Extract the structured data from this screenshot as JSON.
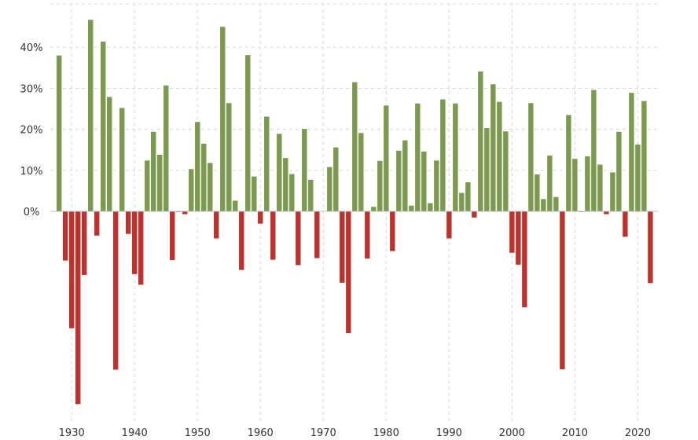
{
  "chart_data": {
    "type": "bar",
    "title": "",
    "xlabel": "",
    "ylabel": "",
    "y_unit": "%",
    "ylim": [
      -48,
      46
    ],
    "xlim": [
      1926.6,
      2023.2
    ],
    "grid": true,
    "colors": {
      "positive": "#7b9b4c",
      "negative": "#c0312b",
      "grid": "#d8d8d8",
      "text": "#333333"
    },
    "y_ticks": [
      {
        "value": 40,
        "label": "40%"
      },
      {
        "value": 30,
        "label": "30%"
      },
      {
        "value": 20,
        "label": "20%"
      },
      {
        "value": 10,
        "label": "10%"
      },
      {
        "value": 0,
        "label": "0%"
      }
    ],
    "x_ticks": [
      {
        "value": 1930,
        "label": "1930"
      },
      {
        "value": 1940,
        "label": "1940"
      },
      {
        "value": 1950,
        "label": "1950"
      },
      {
        "value": 1960,
        "label": "1960"
      },
      {
        "value": 1970,
        "label": "1970"
      },
      {
        "value": 1980,
        "label": "1980"
      },
      {
        "value": 1990,
        "label": "1990"
      },
      {
        "value": 2000,
        "label": "2000"
      },
      {
        "value": 2010,
        "label": "2010"
      },
      {
        "value": 2020,
        "label": "2020"
      }
    ],
    "x": [
      1928,
      1929,
      1930,
      1931,
      1932,
      1933,
      1934,
      1935,
      1936,
      1937,
      1938,
      1939,
      1940,
      1941,
      1942,
      1943,
      1944,
      1945,
      1946,
      1947,
      1948,
      1949,
      1950,
      1951,
      1952,
      1953,
      1954,
      1955,
      1956,
      1957,
      1958,
      1959,
      1960,
      1961,
      1962,
      1963,
      1964,
      1965,
      1966,
      1967,
      1968,
      1969,
      1970,
      1971,
      1972,
      1973,
      1974,
      1975,
      1976,
      1977,
      1978,
      1979,
      1980,
      1981,
      1982,
      1983,
      1984,
      1985,
      1986,
      1987,
      1988,
      1989,
      1990,
      1991,
      1992,
      1993,
      1994,
      1995,
      1996,
      1997,
      1998,
      1999,
      2000,
      2001,
      2002,
      2003,
      2004,
      2005,
      2006,
      2007,
      2008,
      2009,
      2010,
      2011,
      2012,
      2013,
      2014,
      2015,
      2016,
      2017,
      2018,
      2019,
      2020,
      2021,
      2022
    ],
    "values": [
      38.0,
      -12.0,
      -28.5,
      -47.0,
      -15.5,
      46.7,
      -5.9,
      41.4,
      27.9,
      -38.6,
      25.2,
      -5.5,
      -15.3,
      -17.9,
      12.4,
      19.4,
      13.8,
      30.7,
      -11.9,
      0.0,
      -0.7,
      10.3,
      21.8,
      16.5,
      11.8,
      -6.6,
      45.0,
      26.4,
      2.6,
      -14.3,
      38.1,
      8.5,
      -3.0,
      23.1,
      -11.8,
      18.9,
      13.0,
      9.1,
      -13.1,
      20.1,
      7.7,
      -11.4,
      0.1,
      10.8,
      15.6,
      -17.4,
      -29.7,
      31.5,
      19.1,
      -11.5,
      1.1,
      12.3,
      25.8,
      -9.7,
      14.8,
      17.3,
      1.4,
      26.3,
      14.6,
      2.0,
      12.4,
      27.3,
      -6.6,
      26.3,
      4.5,
      7.1,
      -1.5,
      34.1,
      20.3,
      31.0,
      26.7,
      19.5,
      -10.1,
      -13.0,
      -23.4,
      26.4,
      9.0,
      3.0,
      13.6,
      3.5,
      -38.5,
      23.5,
      12.8,
      0.0,
      13.4,
      29.6,
      11.4,
      -0.7,
      9.5,
      19.4,
      -6.2,
      28.9,
      16.3,
      26.9,
      -17.5
    ]
  }
}
